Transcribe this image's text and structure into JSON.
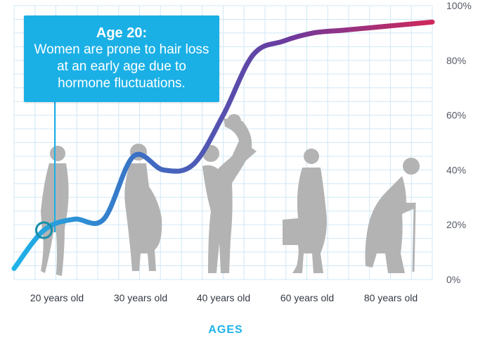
{
  "chart_data": {
    "type": "line",
    "title": "",
    "xlabel": "AGES",
    "ylabel": "",
    "ylim": [
      0,
      100
    ],
    "y_ticks": [
      "0%",
      "20%",
      "40%",
      "60%",
      "80%",
      "100%"
    ],
    "categories": [
      "20 years old",
      "30 years old",
      "40 years old",
      "60 years old",
      "80 years old"
    ],
    "series": [
      {
        "name": "",
        "x": [
          15,
          20,
          25,
          30,
          35,
          40,
          45,
          50,
          55,
          60,
          65,
          70,
          75,
          80,
          85
        ],
        "y": [
          4,
          18,
          22,
          22,
          45,
          40,
          42,
          60,
          82,
          87,
          90,
          91,
          92,
          93,
          94
        ]
      }
    ],
    "annotation": {
      "title": "Age 20:",
      "text": "Women are prone to hair loss at an early age due to hormone fluctuations.",
      "x": 20,
      "y": 18
    },
    "grid": true,
    "gradient": [
      "#1fb3e8",
      "#3b6fc4",
      "#6b3a9e",
      "#d0285a"
    ],
    "silhouette_color": "#b3b3b3"
  }
}
